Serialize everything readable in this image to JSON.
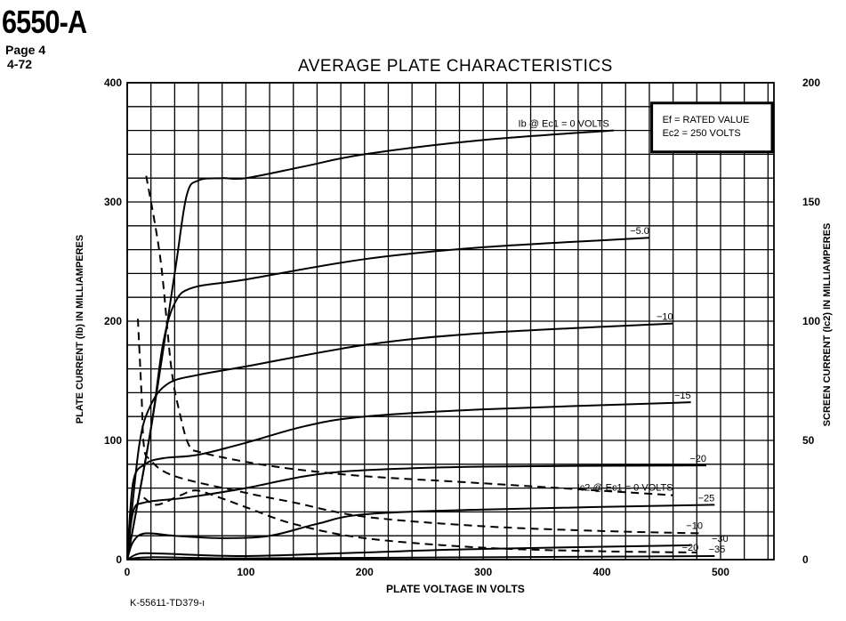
{
  "header": {
    "model": "6550-A",
    "page": "Page  4",
    "date": "4-72"
  },
  "footer": {
    "drawing_code": "K-55611-TD379-ı"
  },
  "chart_data": {
    "type": "line",
    "title": "AVERAGE PLATE CHARACTERISTICS",
    "xlabel": "PLATE VOLTAGE IN VOLTS",
    "ylabel": "PLATE CURRENT (Ib) IN MILLIAMPERES",
    "y2label": "SCREEN CURRENT (Ic2) IN MILLIAMPERES",
    "xlim": [
      0,
      545
    ],
    "ylim": [
      0,
      400
    ],
    "y2lim": [
      0,
      200
    ],
    "xticks": [
      0,
      100,
      200,
      300,
      400,
      500
    ],
    "yticks": [
      0,
      100,
      200,
      300,
      400
    ],
    "y2ticks": [
      0,
      50,
      100,
      150,
      200
    ],
    "grid": true,
    "grid_step_x": 20,
    "grid_step_y": 20,
    "legend_box": [
      "Ef = RATED VALUE",
      "Ec2 = 250 VOLTS"
    ],
    "legend_placement": "top-right",
    "series": [
      {
        "name": "Ib @ Ec1 = 0 VOLTS",
        "label": "Ib @ Ec1 = 0 VOLTS",
        "axis": "left",
        "style": "solid",
        "points": [
          [
            0,
            0
          ],
          [
            20,
            110
          ],
          [
            40,
            240
          ],
          [
            50,
            305
          ],
          [
            60,
            318
          ],
          [
            80,
            320
          ],
          [
            100,
            320
          ],
          [
            150,
            330
          ],
          [
            200,
            340
          ],
          [
            300,
            352
          ],
          [
            410,
            360
          ]
        ]
      },
      {
        "name": "Ib @ Ec1 = -5.0",
        "label": "−5.0",
        "axis": "left",
        "style": "solid",
        "points": [
          [
            0,
            0
          ],
          [
            20,
            110
          ],
          [
            30,
            180
          ],
          [
            40,
            215
          ],
          [
            55,
            228
          ],
          [
            100,
            235
          ],
          [
            200,
            252
          ],
          [
            300,
            262
          ],
          [
            440,
            270
          ]
        ]
      },
      {
        "name": "Ib @ Ec1 = -10",
        "label": "−10",
        "axis": "left",
        "style": "solid",
        "points": [
          [
            0,
            0
          ],
          [
            10,
            95
          ],
          [
            20,
            130
          ],
          [
            35,
            148
          ],
          [
            60,
            155
          ],
          [
            100,
            162
          ],
          [
            200,
            180
          ],
          [
            300,
            190
          ],
          [
            460,
            198
          ]
        ]
      },
      {
        "name": "Ib @ Ec1 = -15",
        "label": "−15",
        "axis": "left",
        "style": "solid",
        "points": [
          [
            0,
            0
          ],
          [
            5,
            65
          ],
          [
            15,
            80
          ],
          [
            30,
            85
          ],
          [
            60,
            88
          ],
          [
            100,
            98
          ],
          [
            150,
            112
          ],
          [
            200,
            120
          ],
          [
            300,
            126
          ],
          [
            475,
            132
          ]
        ]
      },
      {
        "name": "Ib @ Ec1 = -20",
        "label": "−20",
        "axis": "left",
        "style": "solid",
        "points": [
          [
            0,
            0
          ],
          [
            5,
            40
          ],
          [
            15,
            48
          ],
          [
            50,
            52
          ],
          [
            100,
            60
          ],
          [
            150,
            70
          ],
          [
            200,
            75
          ],
          [
            300,
            78
          ],
          [
            488,
            79
          ]
        ]
      },
      {
        "name": "Ib @ Ec1 = -25",
        "label": "−25",
        "axis": "left",
        "style": "solid",
        "points": [
          [
            0,
            0
          ],
          [
            5,
            15
          ],
          [
            15,
            22
          ],
          [
            40,
            20
          ],
          [
            80,
            18
          ],
          [
            120,
            20
          ],
          [
            160,
            30
          ],
          [
            200,
            38
          ],
          [
            300,
            42
          ],
          [
            495,
            46
          ]
        ]
      },
      {
        "name": "Ib @ Ec1 = -30",
        "label": "−30",
        "axis": "left",
        "style": "solid",
        "points": [
          [
            0,
            0
          ],
          [
            10,
            5
          ],
          [
            30,
            5
          ],
          [
            100,
            3
          ],
          [
            200,
            6
          ],
          [
            300,
            9
          ],
          [
            475,
            12
          ]
        ]
      },
      {
        "name": "Ib @ Ec1 = -35",
        "label": "−35",
        "axis": "left",
        "style": "solid",
        "points": [
          [
            0,
            0
          ],
          [
            20,
            2
          ],
          [
            100,
            1
          ],
          [
            300,
            2
          ],
          [
            495,
            3
          ]
        ]
      },
      {
        "name": "Ic2 @ Ec1 = 0 VOLTS",
        "label": "Ic2 @ Ec1 = 0 VOLTS",
        "axis": "right",
        "style": "dashed",
        "points": [
          [
            16,
            161
          ],
          [
            28,
            126
          ],
          [
            37,
            81
          ],
          [
            44,
            62
          ],
          [
            52,
            48
          ],
          [
            62,
            45
          ],
          [
            100,
            41
          ],
          [
            140,
            38
          ],
          [
            200,
            35
          ],
          [
            300,
            32
          ],
          [
            460,
            27
          ]
        ]
      },
      {
        "name": "Ic2 @ Ec1 = -10",
        "label": "−10",
        "axis": "right",
        "style": "dashed",
        "points": [
          [
            9,
            101
          ],
          [
            12,
            70
          ],
          [
            14,
            48
          ],
          [
            19,
            42
          ],
          [
            40,
            35
          ],
          [
            100,
            28
          ],
          [
            140,
            24
          ],
          [
            200,
            18
          ],
          [
            300,
            14
          ],
          [
            400,
            12
          ],
          [
            485,
            11
          ]
        ]
      },
      {
        "name": "Ic2 @ Ec1 = -20",
        "label": "−20",
        "axis": "right",
        "style": "dashed",
        "points": [
          [
            14,
            26
          ],
          [
            25,
            23
          ],
          [
            45,
            27
          ],
          [
            58,
            29
          ],
          [
            78,
            26
          ],
          [
            100,
            22
          ],
          [
            140,
            15
          ],
          [
            200,
            9
          ],
          [
            300,
            5
          ],
          [
            400,
            3.5
          ],
          [
            480,
            3
          ]
        ]
      }
    ]
  }
}
